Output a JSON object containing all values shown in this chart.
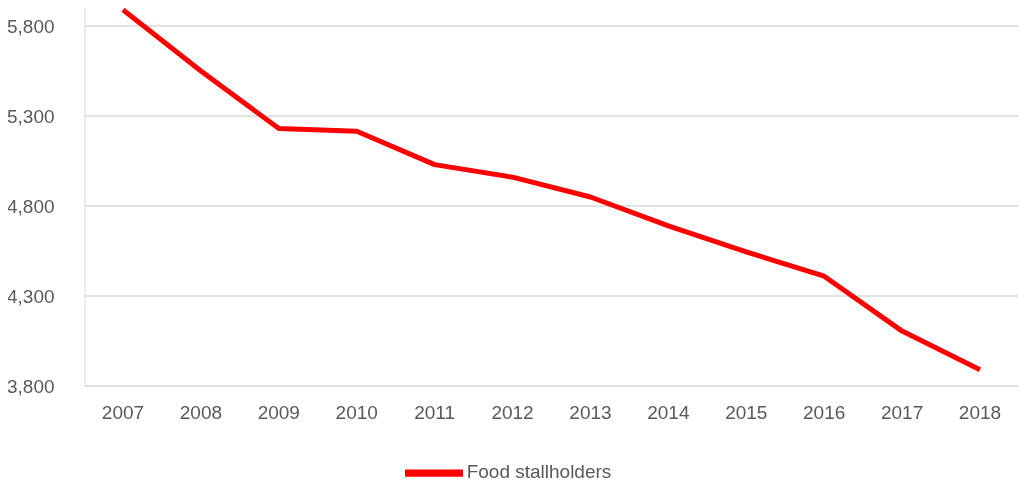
{
  "chart_data": {
    "type": "line",
    "categories": [
      "2007",
      "2008",
      "2009",
      "2010",
      "2011",
      "2012",
      "2013",
      "2014",
      "2015",
      "2016",
      "2017",
      "2018"
    ],
    "series": [
      {
        "name": "Food stallholders",
        "color": "#ff0000",
        "values": [
          5890,
          5550,
          5230,
          5215,
          5030,
          4960,
          4850,
          4690,
          4545,
          4410,
          4105,
          3890
        ]
      }
    ],
    "ylim": [
      3800,
      5900
    ],
    "yticks": [
      {
        "value": 3800,
        "label": "3,800"
      },
      {
        "value": 4300,
        "label": "4,300"
      },
      {
        "value": 4800,
        "label": "4,800"
      },
      {
        "value": 5300,
        "label": "5,300"
      },
      {
        "value": 5800,
        "label": "5,800"
      }
    ],
    "grid": "y",
    "legend": "bottom",
    "marker": "none",
    "line_style": "solid"
  }
}
